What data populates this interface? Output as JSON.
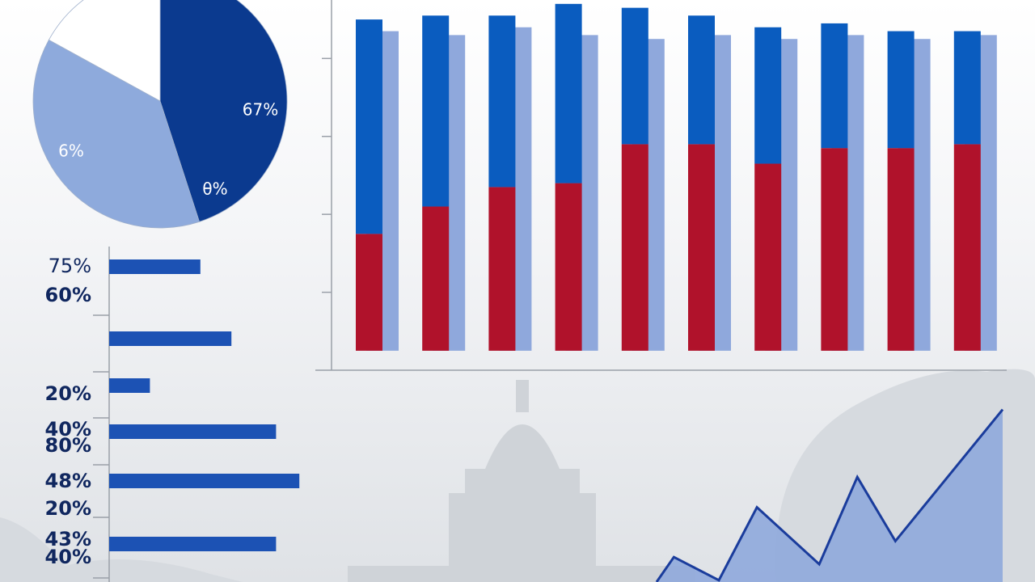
{
  "chart_data": [
    {
      "type": "pie",
      "values": [
        45,
        38,
        17
      ],
      "colors": [
        "#0b3a8f",
        "#8eaadc",
        "#ffffff"
      ],
      "annotations": [
        "67%",
        "6%",
        "θ%"
      ]
    },
    {
      "type": "hbar",
      "values": [
        47,
        63,
        21,
        86,
        98,
        86
      ],
      "color": "#1c52b4",
      "xlim": [
        0,
        100
      ],
      "annotations": [
        "75%",
        "60%",
        "20%",
        "40%",
        "80%",
        "48%",
        "20%",
        "43%",
        "40%"
      ]
    },
    {
      "type": "bar",
      "categories": [
        null,
        null,
        null,
        null,
        null,
        null,
        null,
        null,
        null,
        null
      ],
      "series": [
        {
          "color": "#b0122b",
          "values": [
            30,
            37,
            42,
            43,
            53,
            53,
            48,
            52,
            52,
            53
          ]
        },
        {
          "color": "#0a5cbf",
          "values": [
            55,
            49,
            44,
            46,
            35,
            33,
            35,
            32,
            30,
            29
          ]
        },
        {
          "color": "#8fa8dc",
          "values": [
            82,
            81,
            83,
            81,
            80,
            81,
            80,
            81,
            80,
            81
          ]
        }
      ],
      "stacked": [
        true,
        true,
        false
      ],
      "ylim": [
        -5,
        90
      ],
      "yticks": [
        15,
        35,
        55,
        75
      ]
    },
    {
      "type": "area",
      "x": [
        0,
        5,
        18,
        29,
        47,
        58,
        69,
        100
      ],
      "values": [
        0,
        14,
        1,
        42,
        10,
        59,
        23,
        97
      ],
      "xlim": [
        0,
        100
      ],
      "ylim": [
        0,
        100
      ],
      "color": "#1a3c9c",
      "fill": "#8fa9dc"
    }
  ]
}
